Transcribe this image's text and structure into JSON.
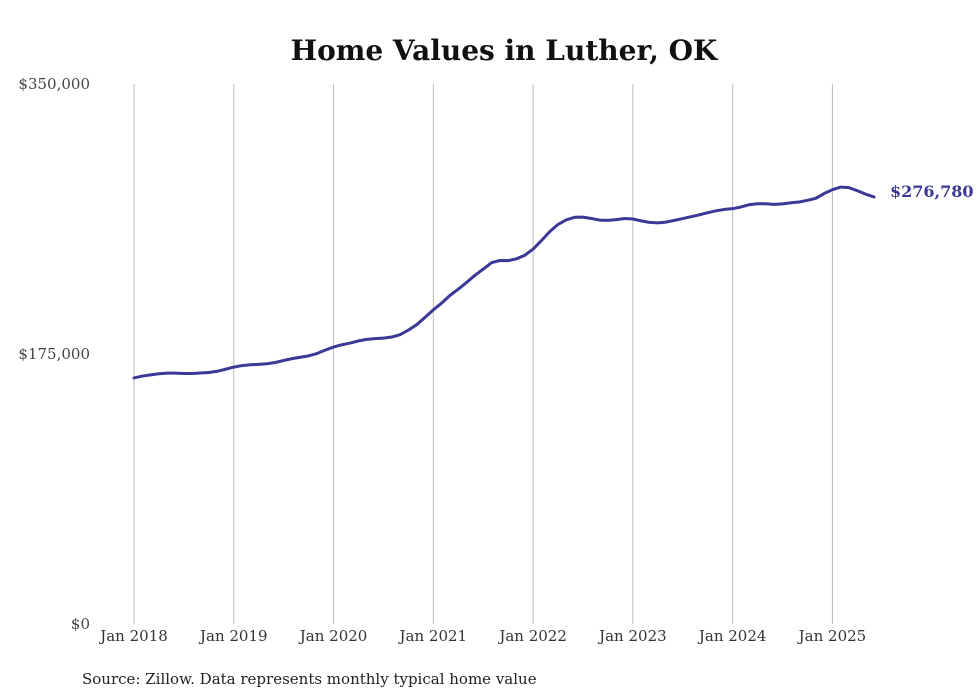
{
  "chart_data": {
    "type": "line",
    "title": "Home Values in Luther, OK",
    "xlabel": "",
    "ylabel": "",
    "source": "Source: Zillow. Data represents monthly typical home value",
    "line_color": "#3b3896",
    "gridline_color": "#bbbbbb",
    "grid": "vertical",
    "y_ticks": [
      {
        "value": 0,
        "label": "$0"
      },
      {
        "value": 175000,
        "label": "$175,000"
      },
      {
        "value": 350000,
        "label": "$350,000"
      }
    ],
    "ylim": [
      0,
      350000
    ],
    "x_ticks": [
      {
        "value": "2018-01",
        "label": "Jan 2018"
      },
      {
        "value": "2019-01",
        "label": "Jan 2019"
      },
      {
        "value": "2020-01",
        "label": "Jan 2020"
      },
      {
        "value": "2021-01",
        "label": "Jan 2021"
      },
      {
        "value": "2022-01",
        "label": "Jan 2022"
      },
      {
        "value": "2023-01",
        "label": "Jan 2023"
      },
      {
        "value": "2024-01",
        "label": "Jan 2024"
      },
      {
        "value": "2025-01",
        "label": "Jan 2025"
      }
    ],
    "xlim": [
      "2018-01",
      "2025-06"
    ],
    "end_label": "$276,780",
    "series": [
      {
        "points": [
          [
            "2018-01",
            159500
          ],
          [
            "2018-02",
            160700
          ],
          [
            "2018-03",
            161500
          ],
          [
            "2018-04",
            162200
          ],
          [
            "2018-05",
            162600
          ],
          [
            "2018-06",
            162600
          ],
          [
            "2018-07",
            162400
          ],
          [
            "2018-08",
            162400
          ],
          [
            "2018-09",
            162700
          ],
          [
            "2018-10",
            163000
          ],
          [
            "2018-11",
            163800
          ],
          [
            "2018-12",
            165100
          ],
          [
            "2019-01",
            166500
          ],
          [
            "2019-02",
            167500
          ],
          [
            "2019-03",
            168000
          ],
          [
            "2019-04",
            168300
          ],
          [
            "2019-05",
            168700
          ],
          [
            "2019-06",
            169500
          ],
          [
            "2019-07",
            170800
          ],
          [
            "2019-08",
            172000
          ],
          [
            "2019-09",
            172900
          ],
          [
            "2019-10",
            173800
          ],
          [
            "2019-11",
            175300
          ],
          [
            "2019-12",
            177500
          ],
          [
            "2020-01",
            179500
          ],
          [
            "2020-02",
            181000
          ],
          [
            "2020-03",
            182100
          ],
          [
            "2020-04",
            183500
          ],
          [
            "2020-05",
            184500
          ],
          [
            "2020-06",
            185000
          ],
          [
            "2020-07",
            185300
          ],
          [
            "2020-08",
            186000
          ],
          [
            "2020-09",
            187500
          ],
          [
            "2020-10",
            190500
          ],
          [
            "2020-11",
            194000
          ],
          [
            "2020-12",
            198700
          ],
          [
            "2021-01",
            203600
          ],
          [
            "2021-02",
            208000
          ],
          [
            "2021-03",
            213000
          ],
          [
            "2021-04",
            217000
          ],
          [
            "2021-05",
            221400
          ],
          [
            "2021-06",
            226000
          ],
          [
            "2021-07",
            230000
          ],
          [
            "2021-08",
            234200
          ],
          [
            "2021-09",
            235600
          ],
          [
            "2021-10",
            235500
          ],
          [
            "2021-11",
            236700
          ],
          [
            "2021-12",
            239000
          ],
          [
            "2022-01",
            243000
          ],
          [
            "2022-02",
            248500
          ],
          [
            "2022-03",
            254300
          ],
          [
            "2022-04",
            259000
          ],
          [
            "2022-05",
            262000
          ],
          [
            "2022-06",
            263600
          ],
          [
            "2022-07",
            263700
          ],
          [
            "2022-08",
            262800
          ],
          [
            "2022-09",
            261800
          ],
          [
            "2022-10",
            261600
          ],
          [
            "2022-11",
            262100
          ],
          [
            "2022-12",
            262800
          ],
          [
            "2023-01",
            262500
          ],
          [
            "2023-02",
            261300
          ],
          [
            "2023-03",
            260300
          ],
          [
            "2023-04",
            260000
          ],
          [
            "2023-05",
            260500
          ],
          [
            "2023-06",
            261600
          ],
          [
            "2023-07",
            262800
          ],
          [
            "2023-08",
            264000
          ],
          [
            "2023-09",
            265200
          ],
          [
            "2023-10",
            266600
          ],
          [
            "2023-11",
            267800
          ],
          [
            "2023-12",
            268700
          ],
          [
            "2024-01",
            269200
          ],
          [
            "2024-02",
            270300
          ],
          [
            "2024-03",
            271800
          ],
          [
            "2024-04",
            272400
          ],
          [
            "2024-05",
            272400
          ],
          [
            "2024-06",
            272000
          ],
          [
            "2024-07",
            272300
          ],
          [
            "2024-08",
            273000
          ],
          [
            "2024-09",
            273500
          ],
          [
            "2024-10",
            274600
          ],
          [
            "2024-11",
            275900
          ],
          [
            "2024-12",
            279000
          ],
          [
            "2025-01",
            281500
          ],
          [
            "2025-02",
            283200
          ],
          [
            "2025-03",
            282800
          ],
          [
            "2025-04",
            280800
          ],
          [
            "2025-05",
            278600
          ],
          [
            "2025-06",
            276780
          ]
        ]
      }
    ]
  }
}
